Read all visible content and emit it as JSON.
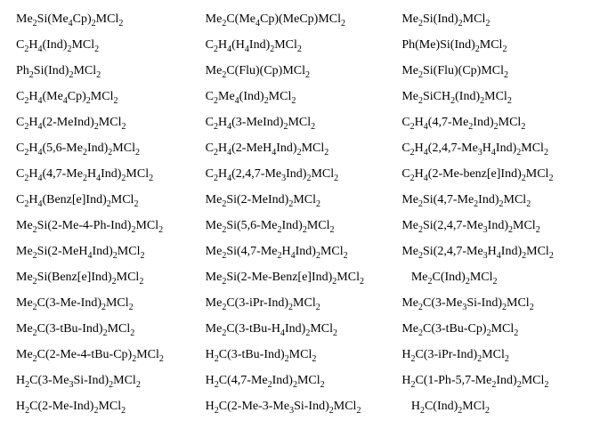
{
  "rows": [
    [
      "Me<sub>2</sub>Si(Me<sub>4</sub>Cp)<sub>2</sub>MCl<sub>2</sub>",
      "Me<sub>2</sub>C(Me<sub>4</sub>Cp)(MeCp)MCl<sub>2</sub>",
      "Me<sub>2</sub>Si(Ind)<sub>2</sub>MCl<sub>2</sub>"
    ],
    [
      "C<sub>2</sub>H<sub>4</sub>(Ind)<sub>2</sub>MCl<sub>2</sub>",
      "C<sub>2</sub>H<sub>4</sub>(H<sub>4</sub>Ind)<sub>2</sub>MCl<sub>2</sub>",
      "Ph(Me)Si(Ind)<sub>2</sub>MCl<sub>2</sub>"
    ],
    [
      "Ph<sub>2</sub>Si(Ind)<sub>2</sub>MCl<sub>2</sub>",
      "Me<sub>2</sub>C(Flu)(Cp)MCl<sub>2</sub>",
      "Me<sub>2</sub>Si(Flu)(Cp)MCl<sub>2</sub>"
    ],
    [
      "C<sub>2</sub>H<sub>4</sub>(Me<sub>4</sub>Cp)<sub>2</sub>MCl<sub>2</sub>",
      "C<sub>2</sub>Me<sub>4</sub>(Ind)<sub>2</sub>MCl<sub>2</sub>",
      "Me<sub>2</sub>SiCH<sub>2</sub>(Ind)<sub>2</sub>MCl<sub>2</sub>"
    ],
    [
      "C<sub>2</sub>H<sub>4</sub>(2-MeInd)<sub>2</sub>MCl<sub>2</sub>",
      "C<sub>2</sub>H<sub>4</sub>(3-MeInd)<sub>2</sub>MCl<sub>2</sub>",
      "C<sub>2</sub>H<sub>4</sub>(4,7-Me<sub>2</sub>Ind)<sub>2</sub>MCl<sub>2</sub>"
    ],
    [
      "C<sub>2</sub>H<sub>4</sub>(5,6-Me<sub>2</sub>Ind)<sub>2</sub>MCl<sub>2</sub>",
      "C<sub>2</sub>H<sub>4</sub>(2-MeH<sub>4</sub>Ind)<sub>2</sub>MCl<sub>2</sub>",
      "C<sub>2</sub>H<sub>4</sub>(2,4,7-Me<sub>3</sub>H<sub>4</sub>Ind)<sub>2</sub>MCl<sub>2</sub>"
    ],
    [
      "C<sub>2</sub>H<sub>4</sub>(4,7-Me<sub>2</sub>H<sub>4</sub>Ind)<sub>2</sub>MCl<sub>2</sub>",
      "C<sub>2</sub>H<sub>4</sub>(2,4,7-Me<sub>3</sub>Ind)<sub>2</sub>MCl<sub>2</sub>",
      "C<sub>2</sub>H<sub>4</sub>(2-Me-benz[e]Ind)<sub>2</sub>MCl<sub>2</sub>"
    ],
    [
      "C<sub>2</sub>H<sub>4</sub>(Benz[e]Ind)<sub>2</sub>MCl<sub>2</sub>",
      "Me<sub>2</sub>Si(2-MeInd)<sub>2</sub>MCl<sub>2</sub>",
      "Me<sub>2</sub>Si(4,7-Me<sub>2</sub>Ind)<sub>2</sub>MCl<sub>2</sub>"
    ],
    [
      "Me<sub>2</sub>Si(2-Me-4-Ph-Ind)<sub>2</sub>MCl<sub>2</sub>",
      "Me<sub>2</sub>Si(5,6-Me<sub>2</sub>Ind)<sub>2</sub>MCl<sub>2</sub>",
      "Me<sub>2</sub>Si(2,4,7-Me<sub>3</sub>Ind)<sub>2</sub>MCl<sub>2</sub>"
    ],
    [
      "Me<sub>2</sub>Si(2-MeH<sub>4</sub>Ind)<sub>2</sub>MCl<sub>2</sub>",
      "Me<sub>2</sub>Si(4,7-Me<sub>2</sub>H<sub>4</sub>Ind)<sub>2</sub>MCl<sub>2</sub>",
      "Me<sub>2</sub>Si(2,4,7-Me<sub>3</sub>H<sub>4</sub>Ind)<sub>2</sub>MCl<sub>2</sub>"
    ],
    [
      "Me<sub>2</sub>Si(Benz[e]Ind)<sub>2</sub>MCl<sub>2</sub>",
      "Me<sub>2</sub>Si(2-Me-Benz[e]Ind)<sub>2</sub>MCl<sub>2</sub>",
      "&nbsp;&nbsp;&nbsp;Me<sub>2</sub>C(Ind)<sub>2</sub>MCl<sub>2</sub>"
    ],
    [
      "Me<sub>2</sub>C(3-Me-Ind)<sub>2</sub>MCl<sub>2</sub>",
      "Me<sub>2</sub>C(3-iPr-Ind)<sub>2</sub>MCl<sub>2</sub>",
      "Me<sub>2</sub>C(3-Me<sub>3</sub>Si-Ind)<sub>2</sub>MCl<sub>2</sub>"
    ],
    [
      "Me<sub>2</sub>C(3-tBu-Ind)<sub>2</sub>MCl<sub>2</sub>",
      "Me<sub>2</sub>C(3-tBu-H<sub>4</sub>Ind)<sub>2</sub>MCl<sub>2</sub>",
      "Me<sub>2</sub>C(3-tBu-Cp)<sub>2</sub>MCl<sub>2</sub>"
    ],
    [
      "Me<sub>2</sub>C(2-Me-4-tBu-Cp)<sub>2</sub>MCl<sub>2</sub>",
      "H<sub>2</sub>C(3-tBu-Ind)<sub>2</sub>MCl<sub>2</sub>",
      "H<sub>2</sub>C(3-iPr-Ind)<sub>2</sub>MCl<sub>2</sub>"
    ],
    [
      "H<sub>2</sub>C(3-Me<sub>3</sub>Si-Ind)<sub>2</sub>MCl<sub>2</sub>",
      "H<sub>2</sub>C(4,7-Me<sub>2</sub>Ind)<sub>2</sub>MCl<sub>2</sub>",
      "H<sub>2</sub>C(1-Ph-5,7-Me<sub>2</sub>Ind)<sub>2</sub>MCl<sub>2</sub>"
    ],
    [
      "H<sub>2</sub>C(2-Me-Ind)<sub>2</sub>MCl<sub>2</sub>",
      "H<sub>2</sub>C(2-Me-3-Me<sub>3</sub>Si-Ind)<sub>2</sub>MCl<sub>2</sub>",
      "&nbsp;&nbsp;&nbsp;H<sub>2</sub>C(Ind)<sub>2</sub>MCl<sub>2</sub>"
    ]
  ]
}
